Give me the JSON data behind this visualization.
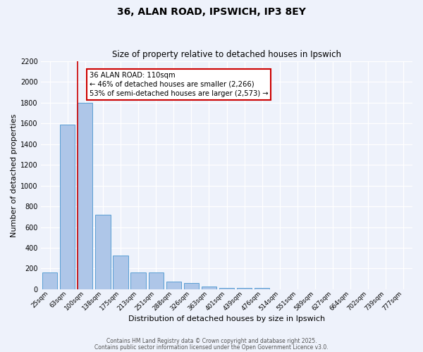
{
  "title": "36, ALAN ROAD, IPSWICH, IP3 8EY",
  "subtitle": "Size of property relative to detached houses in Ipswich",
  "xlabel": "Distribution of detached houses by size in Ipswich",
  "ylabel": "Number of detached properties",
  "bar_labels": [
    "25sqm",
    "63sqm",
    "100sqm",
    "138sqm",
    "175sqm",
    "213sqm",
    "251sqm",
    "288sqm",
    "326sqm",
    "363sqm",
    "401sqm",
    "439sqm",
    "476sqm",
    "514sqm",
    "551sqm",
    "589sqm",
    "627sqm",
    "664sqm",
    "702sqm",
    "739sqm",
    "777sqm"
  ],
  "bar_values": [
    160,
    1590,
    1800,
    720,
    325,
    160,
    160,
    75,
    60,
    30,
    15,
    10,
    10,
    0,
    0,
    0,
    0,
    0,
    0,
    0,
    0
  ],
  "bar_color": "#aec6e8",
  "bar_edge_color": "#5a9fd4",
  "background_color": "#eef2fb",
  "grid_color": "#ffffff",
  "annotation_line1": "36 ALAN ROAD: 110sqm",
  "annotation_line2": "← 46% of detached houses are smaller (2,266)",
  "annotation_line3": "53% of semi-detached houses are larger (2,573) →",
  "annotation_box_color": "#ffffff",
  "annotation_box_edge": "#cc0000",
  "red_line_color": "#cc0000",
  "ylim": [
    0,
    2200
  ],
  "yticks": [
    0,
    200,
    400,
    600,
    800,
    1000,
    1200,
    1400,
    1600,
    1800,
    2000,
    2200
  ],
  "footer1": "Contains HM Land Registry data © Crown copyright and database right 2025.",
  "footer2": "Contains public sector information licensed under the Open Government Licence v3.0."
}
